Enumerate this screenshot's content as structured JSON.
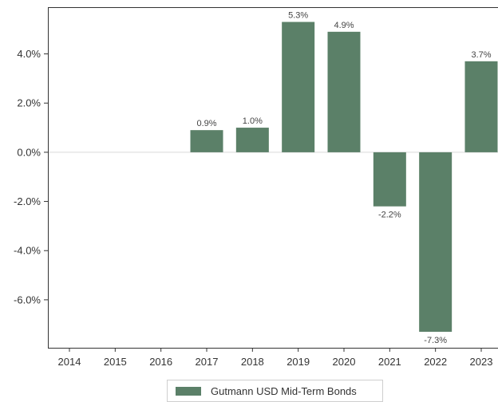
{
  "chart_data": {
    "type": "bar",
    "categories": [
      "2014",
      "2015",
      "2016",
      "2017",
      "2018",
      "2019",
      "2020",
      "2021",
      "2022",
      "2023"
    ],
    "series": [
      {
        "name": "Gutmann USD Mid-Term Bonds",
        "values": [
          null,
          null,
          null,
          0.9,
          1.0,
          5.3,
          4.9,
          -2.2,
          -7.3,
          3.7
        ],
        "data_labels": [
          "",
          "",
          "",
          "0.9%",
          "1.0%",
          "5.3%",
          "4.9%",
          "-2.2%",
          "-7.3%",
          "3.7%"
        ],
        "color": "#5b8068"
      }
    ],
    "y_ticks": [
      4.0,
      2.0,
      0.0,
      -2.0,
      -4.0,
      -6.0
    ],
    "y_tick_labels": [
      "4.0%",
      "2.0%",
      "0.0%",
      "-2.0%",
      "-4.0%",
      "-6.0%"
    ],
    "ylim": [
      -7.95,
      5.9
    ],
    "grid": false,
    "legend_position": "bottom-center",
    "title": "",
    "xlabel": "",
    "ylabel": ""
  },
  "legend": {
    "label": "Gutmann USD Mid-Term Bonds"
  }
}
